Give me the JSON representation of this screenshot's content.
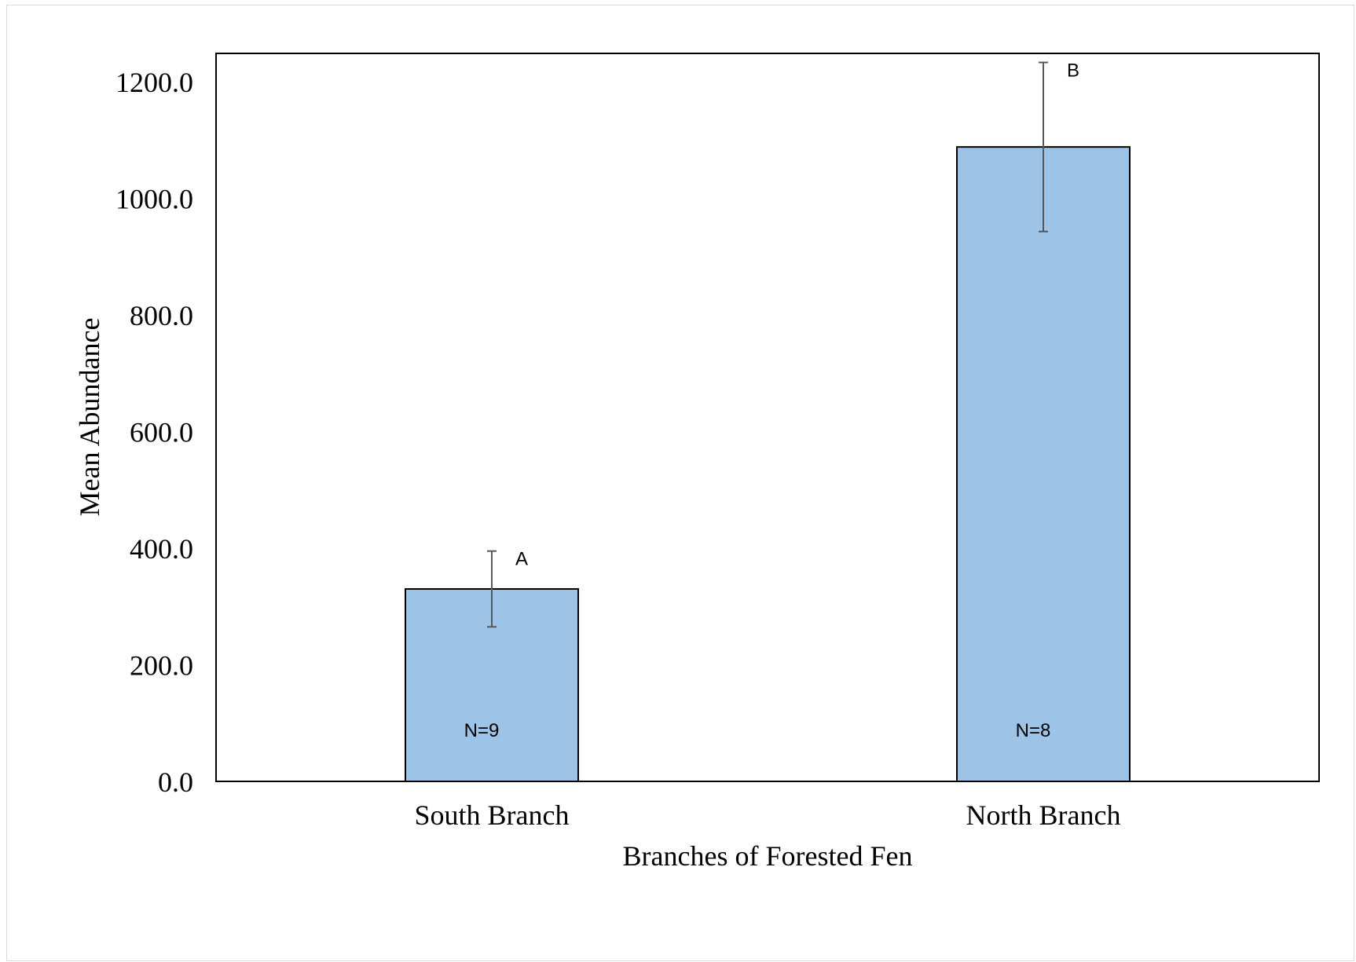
{
  "chart_data": {
    "type": "bar",
    "title": "",
    "xlabel": "Branches of Forested Fen",
    "ylabel": "Mean Abundance",
    "ylim": [
      0,
      1250
    ],
    "yticks": [
      0,
      200,
      400,
      600,
      800,
      1000,
      1200
    ],
    "ytick_labels": [
      "0.0",
      "200.0",
      "400.0",
      "600.0",
      "800.0",
      "1000.0",
      "1200.0"
    ],
    "categories": [
      "South Branch",
      "North Branch"
    ],
    "values": [
      330,
      1088
    ],
    "error_upper": [
      395,
      1233
    ],
    "error_lower": [
      265,
      943
    ],
    "group_letters": [
      "A",
      "B"
    ],
    "sample_sizes": [
      "N=9",
      "N=8"
    ],
    "bar_color": "#9dc3e6",
    "grid": false,
    "legend": "none"
  }
}
